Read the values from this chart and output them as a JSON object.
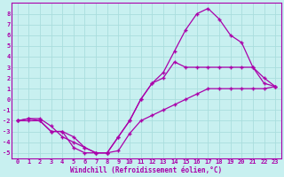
{
  "xlabel": "Windchill (Refroidissement éolien,°C)",
  "background_color": "#c8f0f0",
  "grid_color": "#aadddd",
  "line_color": "#aa00aa",
  "xlim": [
    -0.5,
    23.5
  ],
  "ylim": [
    -5.5,
    9.0
  ],
  "xticks": [
    0,
    1,
    2,
    3,
    4,
    5,
    6,
    7,
    8,
    9,
    10,
    11,
    12,
    13,
    14,
    15,
    16,
    17,
    18,
    19,
    20,
    21,
    22,
    23
  ],
  "yticks": [
    -5,
    -4,
    -3,
    -2,
    -1,
    0,
    1,
    2,
    3,
    4,
    5,
    6,
    7,
    8
  ],
  "line1_x": [
    0,
    1,
    2,
    3,
    4,
    5,
    6,
    7,
    8,
    9,
    10,
    11,
    12,
    13,
    14,
    15,
    16,
    17,
    18,
    19,
    20,
    21,
    22,
    23
  ],
  "line1_y": [
    -2,
    -1.8,
    -1.8,
    -2.5,
    -3.5,
    -4,
    -4.5,
    -5,
    -5,
    -4.8,
    -3.2,
    -2,
    -1.5,
    -1,
    -0.5,
    0,
    0.5,
    1,
    1,
    1,
    1,
    1,
    1,
    1.2
  ],
  "line2_x": [
    0,
    1,
    2,
    3,
    4,
    5,
    6,
    7,
    8,
    9,
    10,
    11,
    12,
    13,
    14,
    15,
    16,
    17,
    18,
    19,
    20,
    21,
    22,
    23
  ],
  "line2_y": [
    -2,
    -1.8,
    -2,
    -3,
    -3,
    -3.5,
    -4.5,
    -5,
    -5,
    -3.5,
    -2,
    0,
    1.5,
    2,
    3.5,
    3,
    3,
    3,
    3,
    3,
    3,
    3,
    2,
    1.2
  ],
  "line3_x": [
    0,
    1,
    2,
    3,
    4,
    5,
    6,
    7,
    8,
    9,
    10,
    11,
    12,
    13,
    14,
    15,
    16,
    17,
    18,
    19,
    20,
    21,
    22,
    23
  ],
  "line3_y": [
    -2,
    -2,
    -2,
    -3,
    -3,
    -4.5,
    -5,
    -5,
    -5,
    -3.5,
    -2,
    0,
    1.5,
    2.5,
    4.5,
    6.5,
    8,
    8.5,
    7.5,
    6,
    5.3,
    3,
    1.5,
    1.2
  ],
  "marker_size": 3,
  "linewidth": 0.9,
  "tick_fontsize": 5,
  "xlabel_fontsize": 5.5
}
